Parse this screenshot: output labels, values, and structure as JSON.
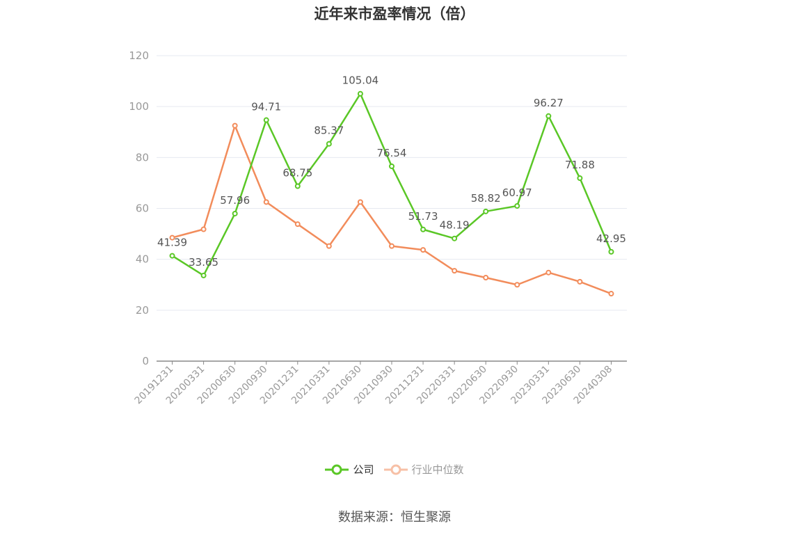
{
  "chart_data": {
    "type": "line",
    "title": "近年来市盈率情况（倍）",
    "xlabel": "",
    "ylabel": "",
    "ylim": [
      0,
      120
    ],
    "yticks": [
      0,
      20,
      40,
      60,
      80,
      100,
      120
    ],
    "grid": true,
    "legend_position": "bottom",
    "categories": [
      "20191231",
      "20200331",
      "20200630",
      "20200930",
      "20201231",
      "20210331",
      "20210630",
      "20210930",
      "20211231",
      "20220331",
      "20220630",
      "20220930",
      "20230331",
      "20230630",
      "20240308"
    ],
    "series": [
      {
        "name": "公司",
        "color": "#5ac726",
        "values": [
          41.39,
          33.65,
          57.96,
          94.71,
          68.75,
          85.37,
          105.04,
          76.54,
          51.73,
          48.19,
          58.82,
          60.97,
          96.27,
          71.88,
          42.95
        ],
        "labels": [
          "41.39",
          "33.65",
          "57.96",
          "94.71",
          "68.75",
          "85.37",
          "105.04",
          "76.54",
          "51.73",
          "48.19",
          "58.82",
          "60.97",
          "96.27",
          "71.88",
          "42.95"
        ]
      },
      {
        "name": "行业中位数",
        "color": "#f28c5b",
        "values": [
          48.5,
          51.8,
          92.5,
          62.5,
          53.8,
          45.2,
          62.5,
          45.2,
          43.7,
          35.5,
          32.8,
          30.0,
          34.8,
          31.2,
          26.5
        ]
      }
    ]
  },
  "legend": {
    "company_label": "公司",
    "industry_label": "行业中位数",
    "industry_label_color": "#999999",
    "company_label_color": "#333333"
  },
  "source": "数据来源：恒生聚源"
}
